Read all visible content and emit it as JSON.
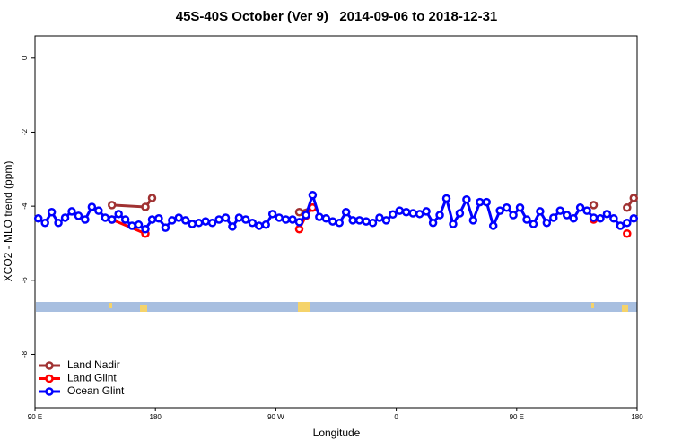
{
  "chart_data": {
    "type": "line",
    "title": "45S-40S October (Ver 9)   2014-09-06 to 2018-12-31",
    "x_label": "Longitude",
    "y_label": "XCO2 - MLO trend (ppm)",
    "xlim": [
      90,
      540
    ],
    "ylim": [
      -9.44,
      0.6
    ],
    "xticks": [
      {
        "value": 90,
        "label": "90 E"
      },
      180,
      {
        "value": 270,
        "label": "90 W"
      },
      {
        "value": 360,
        "label": "0"
      },
      {
        "value": 450,
        "label": "90 E"
      },
      {
        "value": 540,
        "label": "180"
      }
    ],
    "yticks": [
      0,
      -2,
      -4,
      -6,
      -8
    ],
    "legend": "bottom-left",
    "series": [
      {
        "name": "Land Nadir",
        "color": "#a03232",
        "x": [
          147.5,
          172.5,
          177.5,
          null,
          287.5,
          297.5,
          null,
          507.5,
          null,
          532.5,
          537.5
        ],
        "values": [
          -3.97,
          -4.02,
          -3.78,
          null,
          -4.16,
          -4.04,
          null,
          -3.97,
          null,
          -4.04,
          -3.78
        ]
      },
      {
        "name": "Land Glint",
        "color": "#ff0000",
        "x": [
          147.5,
          172.5,
          null,
          287.5,
          292.5,
          297.5,
          null,
          507.5,
          null,
          532.5
        ],
        "values": [
          -4.36,
          -4.74,
          null,
          -4.62,
          -4.26,
          -4.04,
          null,
          -4.36,
          null,
          -4.74
        ]
      },
      {
        "name": "Ocean Glint",
        "color": "#0000ff",
        "x": [
          92.5,
          97.5,
          102.5,
          107.5,
          112.5,
          117.5,
          122.5,
          127.5,
          132.5,
          137.5,
          142.5,
          147.5,
          152.5,
          157.5,
          162.5,
          167.5,
          172.5,
          177.5,
          182.5,
          187.5,
          192.5,
          197.5,
          202.5,
          207.5,
          212.5,
          217.5,
          222.5,
          227.5,
          232.5,
          237.5,
          242.5,
          247.5,
          252.5,
          257.5,
          262.5,
          267.5,
          272.5,
          277.5,
          282.5,
          287.5,
          292.5,
          297.5,
          302.5,
          307.5,
          312.5,
          317.5,
          322.5,
          327.5,
          332.5,
          337.5,
          342.5,
          347.5,
          352.5,
          357.5,
          362.5,
          367.5,
          372.5,
          377.5,
          382.5,
          387.5,
          392.5,
          397.5,
          402.5,
          407.5,
          412.5,
          417.5,
          422.5,
          427.5,
          432.5,
          437.5,
          442.5,
          447.5,
          452.5,
          457.5,
          462.5,
          467.5,
          472.5,
          477.5,
          482.5,
          487.5,
          492.5,
          497.5,
          502.5,
          507.5,
          512.5,
          517.5,
          522.5,
          527.5,
          532.5,
          537.5
        ],
        "values": [
          -4.33,
          -4.45,
          -4.16,
          -4.45,
          -4.31,
          -4.14,
          -4.26,
          -4.36,
          -4.02,
          -4.12,
          -4.31,
          -4.36,
          -4.21,
          -4.36,
          -4.53,
          -4.5,
          -4.62,
          -4.36,
          -4.33,
          -4.58,
          -4.38,
          -4.31,
          -4.38,
          -4.48,
          -4.45,
          -4.41,
          -4.45,
          -4.36,
          -4.31,
          -4.55,
          -4.31,
          -4.36,
          -4.45,
          -4.53,
          -4.5,
          -4.21,
          -4.31,
          -4.36,
          -4.36,
          -4.43,
          -4.24,
          -3.7,
          -4.29,
          -4.33,
          -4.41,
          -4.45,
          -4.16,
          -4.38,
          -4.38,
          -4.41,
          -4.45,
          -4.31,
          -4.38,
          -4.22,
          -4.12,
          -4.16,
          -4.19,
          -4.21,
          -4.14,
          -4.45,
          -4.24,
          -3.79,
          -4.48,
          -4.19,
          -3.82,
          -4.38,
          -3.89,
          -3.89,
          -4.53,
          -4.12,
          -4.04,
          -4.24,
          -4.04,
          -4.36,
          -4.48,
          -4.14,
          -4.45,
          -4.31,
          -4.12,
          -4.24,
          -4.33,
          -4.04,
          -4.12,
          -4.31,
          -4.33,
          -4.21,
          -4.33,
          -4.53,
          -4.45,
          -4.33
        ]
      }
    ]
  }
}
